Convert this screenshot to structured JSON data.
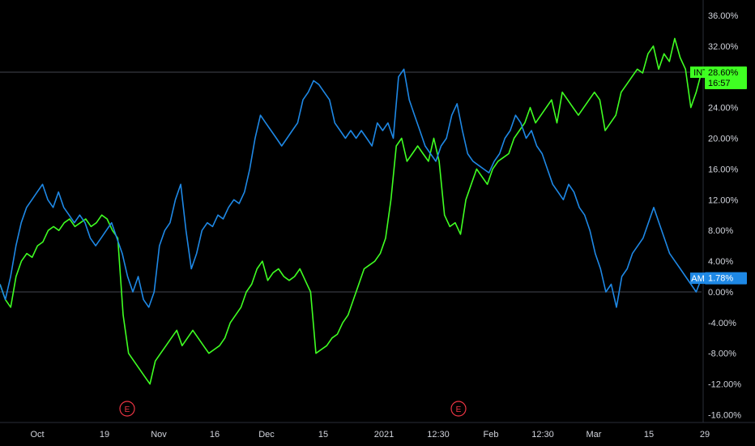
{
  "colors": {
    "background": "#000000",
    "text": "#d1d4dc",
    "grid_line": "#434651",
    "intc": "#3fff22",
    "amd": "#1e88e5",
    "event": "#f23645"
  },
  "chart_data": {
    "type": "line",
    "ylabel": "",
    "y_unit": "%",
    "ylim": [
      -17,
      38
    ],
    "y_ticks": [
      "36.00%",
      "32.00%",
      "28.00%",
      "24.00%",
      "20.00%",
      "16.00%",
      "12.00%",
      "8.00%",
      "4.00%",
      "0.00%",
      "-4.00%",
      "-8.00%",
      "-12.00%",
      "-16.00%"
    ],
    "x_ticks": [
      "Oct",
      "19",
      "Nov",
      "16",
      "Dec",
      "15",
      "2021",
      "12:30",
      "Feb",
      "12:30",
      "Mar",
      "15",
      "29"
    ],
    "events": [
      "E",
      "E"
    ],
    "series": [
      {
        "name": "INTC",
        "last_value": "28.60%",
        "countdown": "16:57",
        "values": [
          1,
          -1,
          -2,
          2,
          4,
          5,
          4.5,
          6,
          6.5,
          8,
          8.5,
          8,
          9,
          9.5,
          8.5,
          9,
          9.5,
          8.5,
          9,
          10,
          9.5,
          8,
          7,
          -3,
          -8,
          -9,
          -10,
          -11,
          -12,
          -9,
          -8,
          -7,
          -6,
          -5,
          -7,
          -6,
          -5,
          -6,
          -7,
          -8,
          -7.5,
          -7,
          -6,
          -4,
          -3,
          -2,
          0,
          1,
          3,
          4,
          1.5,
          2.5,
          3,
          2,
          1.5,
          2,
          3,
          1.5,
          0,
          -8,
          -7.5,
          -7,
          -6,
          -5.5,
          -4,
          -3,
          -1,
          1,
          3,
          3.5,
          4,
          5,
          7,
          12,
          19,
          20,
          17,
          18,
          19,
          18,
          17,
          20,
          17,
          10,
          8.5,
          9,
          7.5,
          12,
          14,
          16,
          15,
          14,
          16,
          17,
          17.5,
          18,
          20,
          21,
          22,
          24,
          22,
          23,
          24,
          25,
          22,
          26,
          25,
          24,
          23,
          24,
          25,
          26,
          25,
          21,
          22,
          23,
          26,
          27,
          28,
          29,
          28.5,
          31,
          32,
          29,
          31,
          30,
          33,
          30.5,
          29,
          24,
          26,
          28.6
        ]
      },
      {
        "name": "AMD",
        "last_value": "1.78%",
        "values": [
          1,
          -1,
          2,
          6,
          9,
          11,
          12,
          13,
          14,
          12,
          11,
          13,
          11,
          10,
          9,
          10,
          9,
          7,
          6,
          7,
          8,
          9,
          7,
          5,
          2,
          0,
          2,
          -1,
          -2,
          0,
          6,
          8,
          9,
          12,
          14,
          8,
          3,
          5,
          8,
          9,
          8.5,
          10,
          9.5,
          11,
          12,
          11.5,
          13,
          16,
          20,
          23,
          22,
          21,
          20,
          19,
          20,
          21,
          22,
          25,
          26,
          27.5,
          27,
          26,
          25,
          22,
          21,
          20,
          21,
          20,
          21,
          20,
          19,
          22,
          21,
          22,
          20,
          28,
          29,
          25,
          23,
          21,
          19,
          18,
          17,
          19,
          20,
          23,
          24.5,
          21,
          18,
          17,
          16.5,
          16,
          15.5,
          17,
          18,
          20,
          21,
          23,
          22,
          20,
          21,
          19,
          18,
          16,
          14,
          13,
          12,
          14,
          13,
          11,
          10,
          8,
          5,
          3,
          0,
          1,
          -2,
          2,
          3,
          5,
          6,
          7,
          9,
          11,
          9,
          7,
          5,
          4,
          3,
          2,
          1,
          0,
          1.78
        ]
      }
    ]
  }
}
